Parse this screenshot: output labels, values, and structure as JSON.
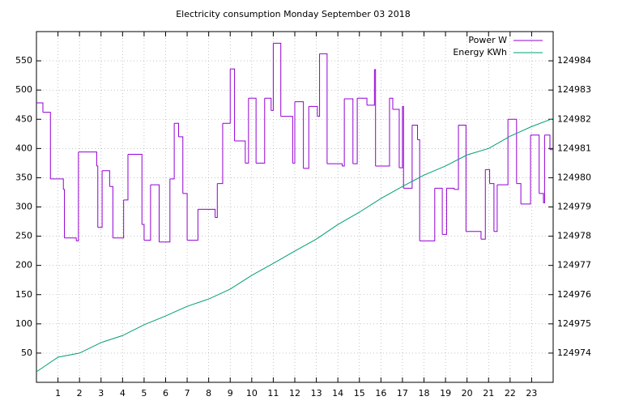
{
  "chart_data": {
    "type": "line",
    "title": "Electricity consumption Monday September 03 2018",
    "xlim": [
      0,
      24
    ],
    "xticks": [
      1,
      2,
      3,
      4,
      5,
      6,
      7,
      8,
      9,
      10,
      11,
      12,
      13,
      14,
      15,
      16,
      17,
      18,
      19,
      20,
      21,
      22,
      23
    ],
    "ylim": [
      0,
      600
    ],
    "yticks": [
      50,
      100,
      150,
      200,
      250,
      300,
      350,
      400,
      450,
      500,
      550
    ],
    "y2lim": [
      124973,
      124985
    ],
    "y2ticks": [
      124974,
      124975,
      124976,
      124977,
      124978,
      124979,
      124980,
      124981,
      124982,
      124983,
      124984
    ],
    "grid": true,
    "legend": "top-right",
    "series": [
      {
        "name": "Power W",
        "color": "#9400d3",
        "step": true,
        "x": [
          0,
          0.3,
          0.65,
          1.25,
          1.3,
          1.85,
          1.95,
          2.8,
          2.85,
          3.05,
          3.4,
          3.55,
          4.05,
          4.25,
          4.9,
          5.0,
          5.3,
          5.7,
          6.2,
          6.4,
          6.6,
          6.8,
          7.0,
          7.5,
          8.3,
          8.4,
          8.65,
          9.0,
          9.2,
          9.7,
          9.85,
          10.2,
          10.6,
          10.9,
          11.0,
          11.35,
          11.9,
          12.0,
          12.4,
          12.65,
          13.05,
          13.15,
          13.5,
          14.2,
          14.3,
          14.7,
          14.9,
          15.35,
          15.7,
          15.75,
          16.4,
          16.55,
          16.85,
          17.0,
          17.05,
          17.45,
          17.7,
          17.8,
          18.5,
          18.85,
          19.05,
          19.4,
          19.6,
          19.95,
          20.65,
          20.85,
          21.05,
          21.25,
          21.4,
          21.9,
          22.3,
          22.5,
          22.95,
          23.35,
          23.55,
          23.6,
          23.85
        ],
        "values": [
          478,
          462,
          348,
          330,
          247,
          242,
          394,
          370,
          265,
          362,
          335,
          247,
          312,
          390,
          270,
          243,
          338,
          240,
          348,
          443,
          420,
          323,
          243,
          296,
          282,
          340,
          443,
          536,
          413,
          375,
          486,
          375,
          486,
          465,
          580,
          455,
          375,
          480,
          366,
          472,
          455,
          562,
          374,
          370,
          485,
          374,
          486,
          474,
          535,
          370,
          486,
          467,
          367,
          472,
          332,
          440,
          415,
          242,
          332,
          253,
          332,
          330,
          440,
          258,
          245,
          364,
          340,
          258,
          338,
          450,
          340,
          305,
          423,
          323,
          307,
          423,
          398
        ]
      },
      {
        "name": "Energy KWh",
        "color": "#009e73",
        "axis": "y2",
        "x": [
          0,
          1,
          2,
          3,
          4,
          5,
          6,
          7,
          8,
          9,
          10,
          11,
          12,
          13,
          14,
          15,
          16,
          17,
          18,
          19,
          20,
          21,
          22,
          23,
          24
        ],
        "values": [
          124973.36,
          124973.86,
          124974.0,
          124974.36,
          124974.6,
          124974.97,
          124975.27,
          124975.6,
          124975.85,
          124976.19,
          124976.66,
          124977.07,
          124977.49,
          124977.9,
          124978.4,
          124978.82,
          124979.29,
          124979.7,
          124980.09,
          124980.4,
          124980.78,
          124981.0,
          124981.42,
          124981.75,
          124982.03
        ]
      }
    ]
  }
}
